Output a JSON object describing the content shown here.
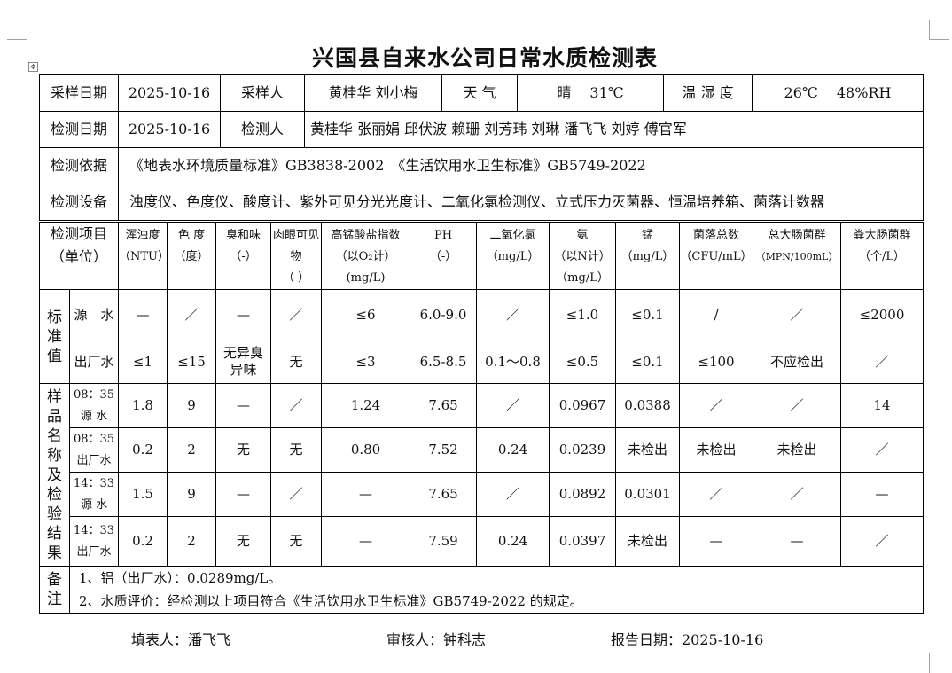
{
  "title": "兴国县自来水公司日常水质检测表",
  "info": {
    "sample_date_label": "采样日期",
    "sample_date": "2025-10-16",
    "sampler_label": "采样人",
    "samplers": "黄桂华 刘小梅",
    "weather_label": "天 气",
    "weather": "晴　 31℃",
    "humidity_label": "温 湿 度",
    "temp_humidity": "26℃　 48%RH",
    "test_date_label": "检测日期",
    "test_date": "2025-10-16",
    "tester_label": "检测人",
    "testers": "黄桂华 张丽娟 邱伏波 赖珊 刘芳玮 刘琳 潘飞飞 刘婷 傅官军",
    "basis_label": "检测依据",
    "basis": "《地表水环境质量标准》GB3838-2002　《生活饮用水卫生标准》GB5749-2022",
    "equipment_label": "检测设备",
    "equipment": "浊度仪、色度仪、酸度计、紫外可见分光光度计、二氧化氯检测仪、立式压力灭菌器、恒温培养箱、菌落计数器"
  },
  "table": {
    "item_label": "检测项目",
    "unit_label": "（单位）",
    "columns": [
      {
        "name": "浑浊度",
        "unit": "（NTU）"
      },
      {
        "name": "色 度",
        "unit": "（度）"
      },
      {
        "name": "臭和味",
        "unit": "（-）"
      },
      {
        "name": "肉眼可见物",
        "unit": "（-）"
      },
      {
        "name": "高锰酸盐指数",
        "unit": "（以O₂计）",
        "unit2": "(mg/L)"
      },
      {
        "name": "PH",
        "unit": "（-）"
      },
      {
        "name": "二氧化氯",
        "unit": "（mg/L）"
      },
      {
        "name": "氨",
        "unit": "（以N计）",
        "unit2": "（mg/L）"
      },
      {
        "name": "锰",
        "unit": "（mg/L）"
      },
      {
        "name": "菌落总数",
        "unit": "（CFU/mL）"
      },
      {
        "name": "总大肠菌群",
        "unit": "（MPN/100mL）"
      },
      {
        "name": "粪大肠菌群",
        "unit": "（个/L）"
      }
    ],
    "standard_label": "标准值",
    "standards": [
      {
        "type": "源　水",
        "values": [
          "—",
          "／",
          "—",
          "／",
          "≤6",
          "6.0-9.0",
          "／",
          "≤1.0",
          "≤0.1",
          "/",
          "／",
          "≤2000"
        ]
      },
      {
        "type": "出厂水",
        "values": [
          "≤1",
          "≤15",
          "无异臭异味",
          "无",
          "≤3",
          "6.5-8.5",
          "0.1～0.8",
          "≤0.5",
          "≤0.1",
          "≤100",
          "不应检出",
          "／"
        ]
      }
    ],
    "samples_label": "样品名称及检验结果",
    "samples": [
      {
        "time": "08：35",
        "type": "源 水",
        "values": [
          "1.8",
          "9",
          "—",
          "／",
          "1.24",
          "7.65",
          "／",
          "0.0967",
          "0.0388",
          "／",
          "／",
          "14"
        ]
      },
      {
        "time": "08：35",
        "type": "出厂水",
        "values": [
          "0.2",
          "2",
          "无",
          "无",
          "0.80",
          "7.52",
          "0.24",
          "0.0239",
          "未检出",
          "未检出",
          "未检出",
          "／"
        ]
      },
      {
        "time": "14：33",
        "type": "源 水",
        "values": [
          "1.5",
          "9",
          "—",
          "／",
          "—",
          "7.65",
          "／",
          "0.0892",
          "0.0301",
          "／",
          "／",
          "—"
        ]
      },
      {
        "time": "14：33",
        "type": "出厂水",
        "values": [
          "0.2",
          "2",
          "无",
          "无",
          "—",
          "7.59",
          "0.24",
          "0.0397",
          "未检出",
          "—",
          "—",
          "／"
        ]
      }
    ],
    "remarks_label": "备注",
    "remarks": [
      "1、铝（出厂水）：0.0289mg/L。",
      "2、水质评价：经检测以上项目符合《生活饮用水卫生标准》GB5749-2022 的规定。"
    ]
  },
  "footer": {
    "filler": "填表人：潘飞飞",
    "reviewer": "审核人：钟科志",
    "report_date": "报告日期：2025-10-16"
  }
}
